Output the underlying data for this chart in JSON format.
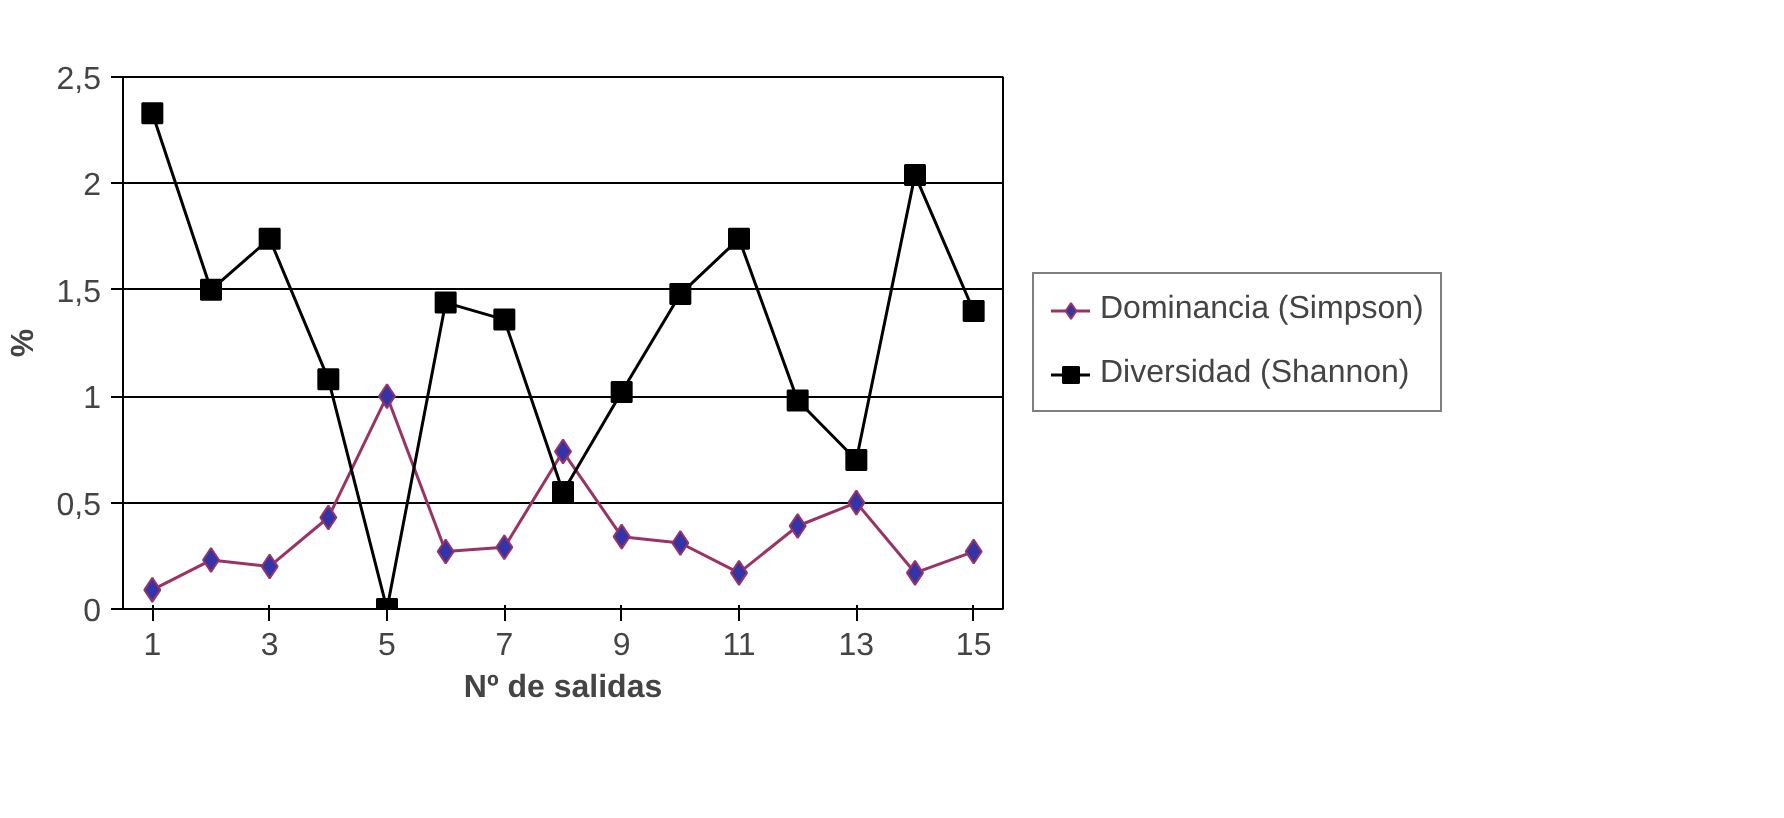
{
  "chart_data": {
    "type": "line",
    "xlabel": "Nº de salidas",
    "ylabel": "%",
    "x": [
      1,
      2,
      3,
      4,
      5,
      6,
      7,
      8,
      9,
      10,
      11,
      12,
      13,
      14,
      15
    ],
    "xlim": [
      0.5,
      15.5
    ],
    "xticks": [
      1,
      3,
      5,
      7,
      9,
      11,
      13,
      15
    ],
    "ylim": [
      0,
      2.5
    ],
    "yticks": [
      0,
      {
        "value": 0.5,
        "label": "0,5"
      },
      1,
      {
        "value": 1.5,
        "label": "1,5"
      },
      2,
      {
        "value": 2.5,
        "label": "2,5"
      }
    ],
    "grid": "y",
    "legend": "right",
    "series": [
      {
        "name": "Dominancia (Simpson)",
        "color": "#993366",
        "marker": "diamond",
        "values": [
          0.09,
          0.23,
          0.2,
          0.43,
          1.0,
          0.27,
          0.29,
          0.74,
          0.34,
          0.31,
          0.17,
          0.39,
          0.5,
          0.17,
          0.27
        ]
      },
      {
        "name": "Diversidad (Shannon)",
        "color": "#000000",
        "marker": "square",
        "values": [
          2.33,
          1.5,
          1.74,
          1.08,
          0,
          1.44,
          1.36,
          0.55,
          1.02,
          1.48,
          1.74,
          0.98,
          0.7,
          2.04,
          1.4
        ]
      }
    ]
  }
}
